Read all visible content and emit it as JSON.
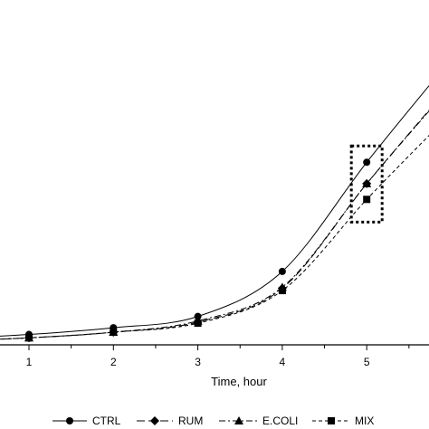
{
  "chart_data": {
    "type": "line",
    "title": "",
    "xlabel": "Time, hour",
    "ylabel": "",
    "x_ticks": [
      1,
      2,
      3,
      4,
      5
    ],
    "xlim": [
      0,
      5.72
    ],
    "ylim": [
      0,
      2.3
    ],
    "grid": false,
    "legend_position": "bottom",
    "series": [
      {
        "name": "CTRL",
        "marker": "circle",
        "dash": "solid",
        "x": [
          0,
          1,
          2,
          3,
          4,
          5
        ],
        "y": [
          0.02,
          0.06,
          0.12,
          0.22,
          0.62,
          1.59
        ]
      },
      {
        "name": "RUM",
        "marker": "diamond",
        "dash": "longdash",
        "x": [
          0,
          1,
          2,
          3,
          4,
          5
        ],
        "y": [
          0.0,
          0.03,
          0.08,
          0.17,
          0.47,
          1.4
        ]
      },
      {
        "name": "E.COLI",
        "marker": "triangle",
        "dash": "dashdot",
        "x": [
          0,
          1,
          2,
          3,
          4,
          5
        ],
        "y": [
          0.0,
          0.03,
          0.08,
          0.18,
          0.48,
          1.4
        ]
      },
      {
        "name": "MIX",
        "marker": "square",
        "dash": "dashed",
        "x": [
          0,
          1,
          2,
          3,
          4,
          5
        ],
        "y": [
          0.0,
          0.03,
          0.08,
          0.16,
          0.45,
          1.26
        ]
      }
    ],
    "annotation": {
      "type": "dotted-box",
      "around_x": 5
    }
  }
}
